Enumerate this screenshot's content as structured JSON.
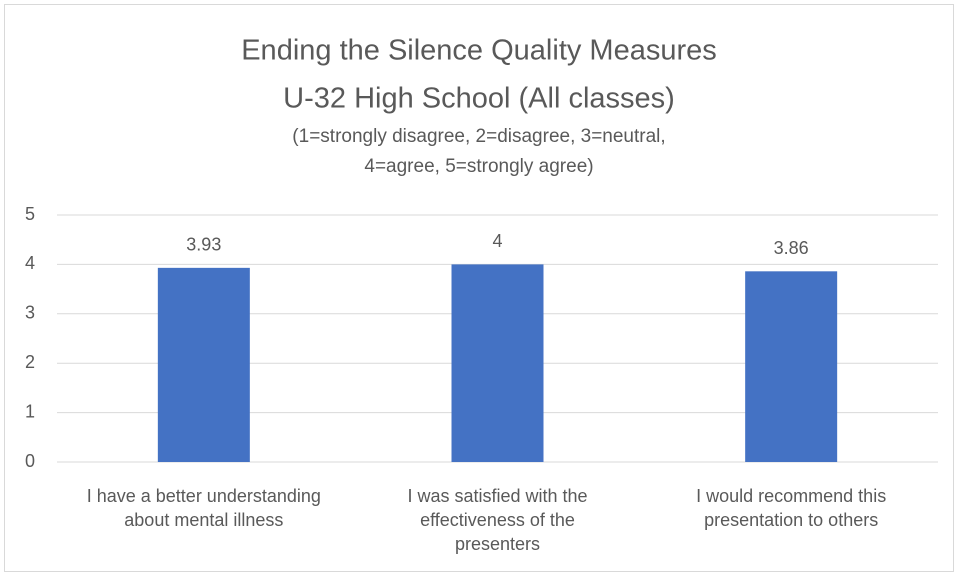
{
  "chart_data": {
    "type": "bar",
    "title": [
      "Ending the Silence Quality Measures",
      "U-32 High School (All classes)"
    ],
    "subtitle": [
      "(1=strongly disagree, 2=disagree, 3=neutral,",
      "4=agree, 5=strongly agree)"
    ],
    "categories": [
      "I have a better understanding about mental illness",
      "I was satisfied with the effectiveness of the presenters",
      "I would recommend this presentation to others"
    ],
    "values": [
      3.93,
      4,
      3.86
    ],
    "color": "#4472c4",
    "ylim": [
      0,
      5
    ],
    "yticks": [
      0,
      1,
      2,
      3,
      4,
      5
    ],
    "grid": true
  }
}
